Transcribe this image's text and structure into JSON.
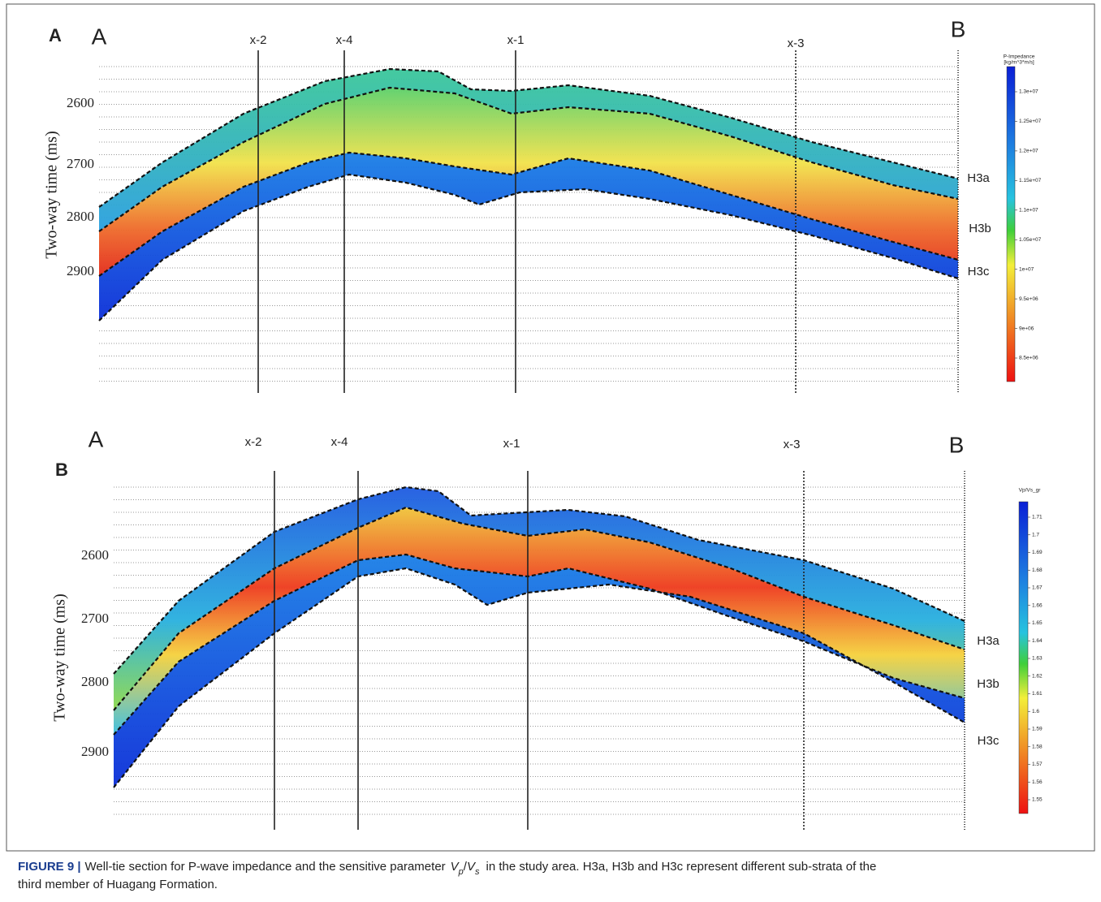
{
  "panels": [
    {
      "label": "A",
      "left": "A",
      "right": "B",
      "wells": [
        "x-2",
        "x-4",
        "x-1",
        "x-3"
      ],
      "y_label": "Two-way time (ms)",
      "y_ticks": [
        "2600",
        "2700",
        "2800",
        "2900"
      ],
      "horizons": [
        "H3a",
        "H3b",
        "H3c"
      ],
      "colorbar": {
        "title": [
          "P-Impedance",
          "[kg/m^3*m/s]"
        ],
        "ticks": [
          "1.3e+07",
          "1.25e+07",
          "1.2e+07",
          "1.15e+07",
          "1.1e+07",
          "1.05e+07",
          "1e+07",
          "9.5e+06",
          "9e+06",
          "8.5e+06"
        ]
      }
    },
    {
      "label": "B",
      "left": "A",
      "right": "B",
      "wells": [
        "x-2",
        "x-4",
        "x-1",
        "x-3"
      ],
      "y_label": "Two-way time (ms)",
      "y_ticks": [
        "2600",
        "2700",
        "2800",
        "2900"
      ],
      "horizons": [
        "H3a",
        "H3b",
        "H3c"
      ],
      "colorbar": {
        "title": [
          "Vp/Vs_gr"
        ],
        "ticks": [
          "1.71",
          "1.7",
          "1.69",
          "1.68",
          "1.67",
          "1.66",
          "1.65",
          "1.64",
          "1.63",
          "1.62",
          "1.61",
          "1.6",
          "1.59",
          "1.58",
          "1.57",
          "1.56",
          "1.55"
        ]
      }
    }
  ],
  "caption": {
    "label": "FIGURE 9 |",
    "parts": [
      "Well-tie section for P-wave impedance and the sensitive parameter",
      "V",
      "p",
      "/",
      "V",
      "s",
      "in the study area. H3a, H3b and H3c represent different sub-strata of the"
    ],
    "line2": "third member of Huagang Formation."
  }
}
